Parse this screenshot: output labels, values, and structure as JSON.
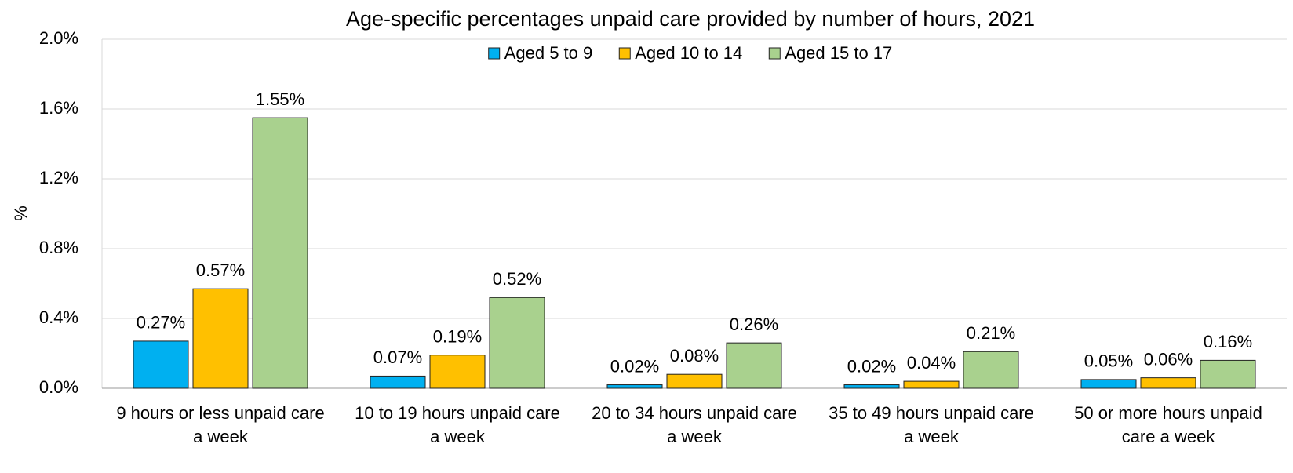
{
  "chart_data": {
    "type": "bar",
    "title": "Age-specific percentages unpaid care provided by number of hours, 2021",
    "y_label": "%",
    "categories": [
      "9 hours or less unpaid care a week",
      "10 to 19 hours unpaid care a week",
      "20 to 34 hours unpaid care a week",
      "35 to 49 hours unpaid care a week",
      "50 or more hours unpaid care a week"
    ],
    "series": [
      {
        "name": "Aged 5 to 9",
        "color": "#00b0f0",
        "values": [
          0.27,
          0.07,
          0.02,
          0.02,
          0.05
        ],
        "value_labels": [
          "0.27%",
          "0.07%",
          "0.02%",
          "0.02%",
          "0.05%"
        ]
      },
      {
        "name": "Aged 10 to 14",
        "color": "#ffc000",
        "values": [
          0.57,
          0.19,
          0.08,
          0.04,
          0.06
        ],
        "value_labels": [
          "0.57%",
          "0.19%",
          "0.08%",
          "0.04%",
          "0.06%"
        ]
      },
      {
        "name": "Aged 15 to 17",
        "color": "#a9d18e",
        "values": [
          1.55,
          0.52,
          0.26,
          0.21,
          0.16
        ],
        "value_labels": [
          "1.55%",
          "0.52%",
          "0.26%",
          "0.21%",
          "0.16%"
        ]
      }
    ],
    "ylim": [
      0,
      2.0
    ],
    "yticks": [
      {
        "value": 0,
        "label": "0.0%"
      },
      {
        "value": 0.4,
        "label": "0.4%"
      },
      {
        "value": 0.8,
        "label": "0.8%"
      },
      {
        "value": 1.2,
        "label": "1.2%"
      },
      {
        "value": 1.6,
        "label": "1.6%"
      },
      {
        "value": 2.0,
        "label": "2.0%"
      }
    ],
    "grid": true,
    "legend": "top"
  }
}
